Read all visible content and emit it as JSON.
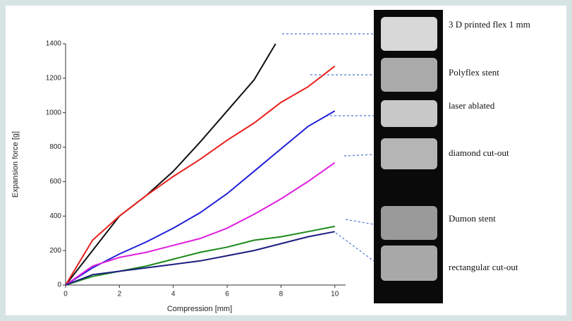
{
  "chart_data": {
    "type": "line",
    "x_label": "Compression [mm]",
    "y_label": "Expansion force [g]",
    "x": [
      0,
      1,
      2,
      3,
      4,
      5,
      6,
      7,
      8,
      9,
      10
    ],
    "xlim": [
      0,
      10.4
    ],
    "xticks": [
      0,
      2,
      4,
      6,
      8,
      10
    ],
    "ylim": [
      0,
      1400
    ],
    "yticks": [
      0,
      200,
      400,
      600,
      800,
      1000,
      1200,
      1400
    ],
    "series": [
      {
        "name": "3 D printed flex 1 mm",
        "color": "#111111",
        "x": [
          0,
          1,
          2,
          3,
          4,
          5,
          6,
          7,
          7.8
        ],
        "values": [
          0,
          200,
          400,
          520,
          660,
          830,
          1010,
          1190,
          1400
        ]
      },
      {
        "name": "Polyflex stent",
        "color": "#e8201c",
        "values": [
          0,
          260,
          400,
          520,
          630,
          730,
          840,
          940,
          1060,
          1150,
          1270
        ]
      },
      {
        "name": "laser ablated",
        "color": "#2020d8",
        "values": [
          0,
          100,
          180,
          250,
          330,
          420,
          530,
          660,
          790,
          920,
          1010
        ]
      },
      {
        "name": "diamond cut-out",
        "color": "#e020e0",
        "values": [
          0,
          110,
          160,
          190,
          230,
          270,
          330,
          410,
          500,
          600,
          710
        ]
      },
      {
        "name": "Dumon stent",
        "color": "#1a8a1a",
        "values": [
          0,
          50,
          80,
          110,
          150,
          190,
          220,
          260,
          280,
          310,
          340
        ]
      },
      {
        "name": "rectangular cut-out",
        "color": "#1c1c80",
        "values": [
          0,
          60,
          80,
          100,
          120,
          140,
          170,
          200,
          240,
          280,
          310
        ]
      }
    ]
  }
}
